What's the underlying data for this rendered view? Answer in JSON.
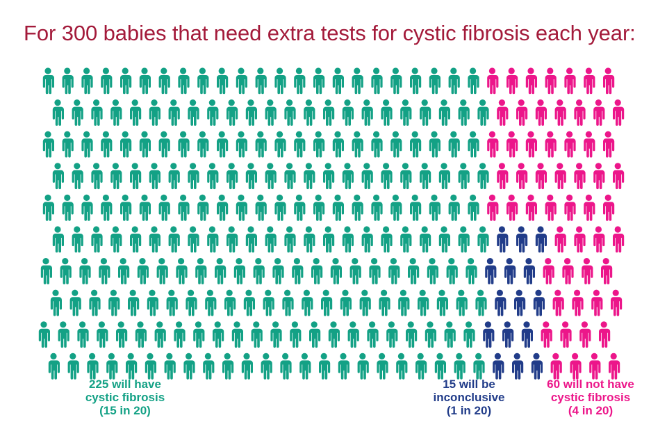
{
  "chart_data": {
    "type": "pictogram",
    "title": "For 300 babies that need extra tests for cystic fibrosis each year:",
    "total": 300,
    "series": [
      {
        "name": "will have cystic fibrosis",
        "value": 225,
        "color": "#13a185",
        "label_lines": [
          "225 will have",
          "cystic fibrosis",
          "(15 in 20)"
        ]
      },
      {
        "name": "will be inconclusive",
        "value": 15,
        "color": "#213c89",
        "label_lines": [
          "15 will be",
          "inconclusive",
          "(1 in 20)"
        ]
      },
      {
        "name": "will not have cystic fibrosis",
        "value": 60,
        "color": "#ec168a",
        "label_lines": [
          "60 will not have",
          "cystic fibrosis",
          "(4 in 20)"
        ]
      }
    ]
  },
  "icon": "person-icon"
}
